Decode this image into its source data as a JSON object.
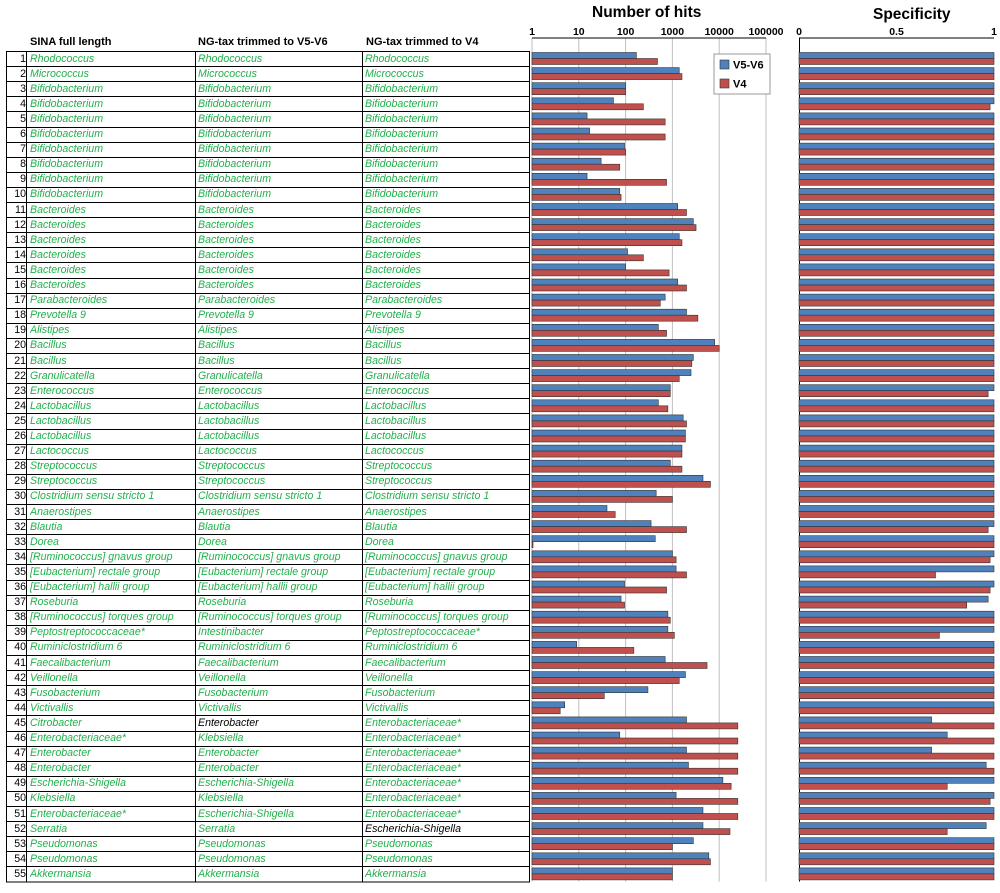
{
  "table": {
    "headers": [
      "SINA full length",
      "NG-tax trimmed to V5-V6",
      "NG-tax trimmed to V4"
    ],
    "rows": [
      {
        "n": "1",
        "a": "Rhodococcus",
        "b": "Rhodococcus",
        "c": "Rhodococcus"
      },
      {
        "n": "2",
        "a": "Micrococcus",
        "b": "Micrococcus",
        "c": "Micrococcus"
      },
      {
        "n": "3",
        "a": "Bifidobacterium",
        "b": "Bifidobacterium",
        "c": "Bifidobacterium"
      },
      {
        "n": "4",
        "a": "Bifidobacterium",
        "b": "Bifidobacterium",
        "c": "Bifidobacterium"
      },
      {
        "n": "5",
        "a": "Bifidobacterium",
        "b": "Bifidobacterium",
        "c": "Bifidobacterium"
      },
      {
        "n": "6",
        "a": "Bifidobacterium",
        "b": "Bifidobacterium",
        "c": "Bifidobacterium"
      },
      {
        "n": "7",
        "a": "Bifidobacterium",
        "b": "Bifidobacterium",
        "c": "Bifidobacterium"
      },
      {
        "n": "8",
        "a": "Bifidobacterium",
        "b": "Bifidobacterium",
        "c": "Bifidobacterium"
      },
      {
        "n": "9",
        "a": "Bifidobacterium",
        "b": "Bifidobacterium",
        "c": "Bifidobacterium"
      },
      {
        "n": "10",
        "a": "Bifidobacterium",
        "b": "Bifidobacterium",
        "c": "Bifidobacterium"
      },
      {
        "n": "11",
        "a": "Bacteroides",
        "b": "Bacteroides",
        "c": "Bacteroides"
      },
      {
        "n": "12",
        "a": "Bacteroides",
        "b": "Bacteroides",
        "c": "Bacteroides"
      },
      {
        "n": "13",
        "a": "Bacteroides",
        "b": "Bacteroides",
        "c": "Bacteroides"
      },
      {
        "n": "14",
        "a": "Bacteroides",
        "b": "Bacteroides",
        "c": "Bacteroides"
      },
      {
        "n": "15",
        "a": "Bacteroides",
        "b": "Bacteroides",
        "c": "Bacteroides"
      },
      {
        "n": "16",
        "a": "Bacteroides",
        "b": "Bacteroides",
        "c": "Bacteroides"
      },
      {
        "n": "17",
        "a": "Parabacteroides",
        "b": "Parabacteroides",
        "c": "Parabacteroides"
      },
      {
        "n": "18",
        "a": "Prevotella 9",
        "b": "Prevotella 9",
        "c": "Prevotella 9"
      },
      {
        "n": "19",
        "a": "Alistipes",
        "b": "Alistipes",
        "c": "Alistipes"
      },
      {
        "n": "20",
        "a": "Bacillus",
        "b": "Bacillus",
        "c": "Bacillus"
      },
      {
        "n": "21",
        "a": "Bacillus",
        "b": "Bacillus",
        "c": "Bacillus"
      },
      {
        "n": "22",
        "a": "Granulicatella",
        "b": "Granulicatella",
        "c": "Granulicatella"
      },
      {
        "n": "23",
        "a": "Enterococcus",
        "b": "Enterococcus",
        "c": "Enterococcus"
      },
      {
        "n": "24",
        "a": "Lactobacillus",
        "b": "Lactobacillus",
        "c": "Lactobacillus"
      },
      {
        "n": "25",
        "a": "Lactobacillus",
        "b": "Lactobacillus",
        "c": "Lactobacillus"
      },
      {
        "n": "26",
        "a": "Lactobacillus",
        "b": "Lactobacillus",
        "c": "Lactobacillus"
      },
      {
        "n": "27",
        "a": "Lactococcus",
        "b": "Lactococcus",
        "c": "Lactococcus"
      },
      {
        "n": "28",
        "a": "Streptococcus",
        "b": "Streptococcus",
        "c": "Streptococcus"
      },
      {
        "n": "29",
        "a": "Streptococcus",
        "b": "Streptococcus",
        "c": "Streptococcus"
      },
      {
        "n": "30",
        "a": "Clostridium sensu stricto 1",
        "b": "Clostridium sensu stricto 1",
        "c": "Clostridium sensu stricto 1"
      },
      {
        "n": "31",
        "a": "Anaerostipes",
        "b": "Anaerostipes",
        "c": "Anaerostipes"
      },
      {
        "n": "32",
        "a": "Blautia",
        "b": "Blautia",
        "c": "Blautia"
      },
      {
        "n": "33",
        "a": "Dorea",
        "b": "Dorea",
        "c": "Dorea"
      },
      {
        "n": "34",
        "a": "[Ruminococcus] gnavus group",
        "b": "[Ruminococcus] gnavus group",
        "c": "[Ruminococcus] gnavus group"
      },
      {
        "n": "35",
        "a": "[Eubacterium] rectale group",
        "b": "[Eubacterium] rectale group",
        "c": "[Eubacterium] rectale group"
      },
      {
        "n": "36",
        "a": "[Eubacterium] hallii group",
        "b": "[Eubacterium] hallii group",
        "c": "[Eubacterium] hallii group"
      },
      {
        "n": "37",
        "a": "Roseburia",
        "b": "Roseburia",
        "c": "Roseburia"
      },
      {
        "n": "38",
        "a": "[Ruminococcus] torques group",
        "b": "[Ruminococcus] torques group",
        "c": "[Ruminococcus] torques group"
      },
      {
        "n": "39",
        "a": "Peptostreptococcaceae*",
        "b": "Intestinibacter",
        "c": "Peptostreptococcaceae*"
      },
      {
        "n": "40",
        "a": "Ruminiclostridium 6",
        "b": "Ruminiclostridium 6",
        "c": "Ruminiclostridium 6"
      },
      {
        "n": "41",
        "a": "Faecalibacterium",
        "b": "Faecalibacterium",
        "c": "Faecalibacterium"
      },
      {
        "n": "42",
        "a": "Veillonella",
        "b": "Veillonella",
        "c": "Veillonella"
      },
      {
        "n": "43",
        "a": "Fusobacterium",
        "b": "Fusobacterium",
        "c": "Fusobacterium"
      },
      {
        "n": "44",
        "a": "Victivallis",
        "b": "Victivallis",
        "c": "Victivallis"
      },
      {
        "n": "45",
        "a": "Citrobacter",
        "b": "Enterobacter",
        "c": "Enterobacteriaceae*",
        "b_black": true
      },
      {
        "n": "46",
        "a": "Enterobacteriaceae*",
        "b": "Klebsiella",
        "c": "Enterobacteriaceae*"
      },
      {
        "n": "47",
        "a": "Enterobacter",
        "b": "Enterobacter",
        "c": "Enterobacteriaceae*"
      },
      {
        "n": "48",
        "a": "Enterobacter",
        "b": "Enterobacter",
        "c": "Enterobacteriaceae*"
      },
      {
        "n": "49",
        "a": "Escherichia-Shigella",
        "b": "Escherichia-Shigella",
        "c": "Enterobacteriaceae*"
      },
      {
        "n": "50",
        "a": "Klebsiella",
        "b": "Klebsiella",
        "c": "Enterobacteriaceae*"
      },
      {
        "n": "51",
        "a": "Enterobacteriaceae*",
        "b": "Escherichia-Shigella",
        "c": "Enterobacteriaceae*"
      },
      {
        "n": "52",
        "a": "Serratia",
        "b": "Serratia",
        "c": "Escherichia-Shigella",
        "c_black": true
      },
      {
        "n": "53",
        "a": "Pseudomonas",
        "b": "Pseudomonas",
        "c": "Pseudomonas"
      },
      {
        "n": "54",
        "a": "Pseudomonas",
        "b": "Pseudomonas",
        "c": "Pseudomonas"
      },
      {
        "n": "55",
        "a": "Akkermansia",
        "b": "Akkermansia",
        "c": "Akkermansia"
      }
    ]
  },
  "colors": {
    "series_v5v6": "#4f81bd",
    "series_v4": "#c0504d",
    "genus_text": "#21b04b"
  },
  "chart_data": [
    {
      "type": "bar",
      "orientation": "horizontal",
      "title": "Number of hits",
      "xscale": "log",
      "xlim": [
        1,
        100000
      ],
      "xticks": [
        "1",
        "10",
        "100",
        "1000",
        "10000",
        "100000"
      ],
      "grid": true,
      "legend_position": "top-right",
      "categories": [
        "1",
        "2",
        "3",
        "4",
        "5",
        "6",
        "7",
        "8",
        "9",
        "10",
        "11",
        "12",
        "13",
        "14",
        "15",
        "16",
        "17",
        "18",
        "19",
        "20",
        "21",
        "22",
        "23",
        "24",
        "25",
        "26",
        "27",
        "28",
        "29",
        "30",
        "31",
        "32",
        "33",
        "34",
        "35",
        "36",
        "37",
        "38",
        "39",
        "40",
        "41",
        "42",
        "43",
        "44",
        "45",
        "46",
        "47",
        "48",
        "49",
        "50",
        "51",
        "52",
        "53",
        "54",
        "55"
      ],
      "series": [
        {
          "name": "V5-V6",
          "color": "#4f81bd",
          "values": [
            170,
            1400,
            100,
            55,
            15,
            17,
            95,
            30,
            15,
            75,
            1300,
            2800,
            1400,
            110,
            100,
            1300,
            700,
            2000,
            500,
            8000,
            2800,
            2500,
            900,
            500,
            1700,
            1900,
            1600,
            900,
            4500,
            450,
            40,
            350,
            430,
            1000,
            1200,
            95,
            80,
            800,
            800,
            9,
            700,
            1900,
            300,
            5,
            2000,
            75,
            2000,
            2200,
            12000,
            1200,
            4500,
            4500,
            2800,
            6000,
            1000
          ]
        },
        {
          "name": "V4",
          "color": "#c0504d",
          "values": [
            480,
            1600,
            100,
            240,
            700,
            700,
            100,
            75,
            750,
            80,
            2000,
            3200,
            1600,
            240,
            850,
            2000,
            550,
            3500,
            750,
            10000,
            2600,
            1400,
            900,
            800,
            2000,
            1900,
            1600,
            1600,
            6500,
            1000,
            60,
            2000,
            1,
            1200,
            2000,
            750,
            95,
            900,
            1100,
            150,
            5500,
            1400,
            35,
            4,
            25000,
            25000,
            25000,
            25000,
            18000,
            25000,
            25000,
            17000,
            1000,
            6500,
            1000
          ]
        }
      ]
    },
    {
      "type": "bar",
      "orientation": "horizontal",
      "title": "Specificity",
      "xlim": [
        0,
        1
      ],
      "xticks": [
        "0",
        "0.5",
        "1"
      ],
      "grid": false,
      "categories": [
        "1",
        "2",
        "3",
        "4",
        "5",
        "6",
        "7",
        "8",
        "9",
        "10",
        "11",
        "12",
        "13",
        "14",
        "15",
        "16",
        "17",
        "18",
        "19",
        "20",
        "21",
        "22",
        "23",
        "24",
        "25",
        "26",
        "27",
        "28",
        "29",
        "30",
        "31",
        "32",
        "33",
        "34",
        "35",
        "36",
        "37",
        "38",
        "39",
        "40",
        "41",
        "42",
        "43",
        "44",
        "45",
        "46",
        "47",
        "48",
        "49",
        "50",
        "51",
        "52",
        "53",
        "54",
        "55"
      ],
      "series": [
        {
          "name": "V5-V6",
          "color": "#4f81bd",
          "values": [
            1,
            1,
            1,
            1,
            1,
            1,
            1,
            1,
            1,
            1,
            1,
            1,
            1,
            1,
            1,
            1,
            1,
            1,
            1,
            1,
            1,
            1,
            1,
            1,
            1,
            1,
            1,
            1,
            1,
            1,
            1,
            1,
            1,
            1,
            1,
            1,
            0.97,
            1,
            1,
            1,
            1,
            1,
            1,
            1,
            0.68,
            0.76,
            0.68,
            0.96,
            1,
            1,
            1,
            0.96,
            1,
            1,
            1
          ]
        },
        {
          "name": "V4",
          "color": "#c0504d",
          "values": [
            1,
            1,
            1,
            0.98,
            1,
            1,
            1,
            1,
            1,
            1,
            1,
            1,
            1,
            1,
            1,
            1,
            1,
            1,
            1,
            1,
            1,
            1,
            0.97,
            1,
            1,
            1,
            1,
            1,
            1,
            1,
            1,
            0.97,
            1,
            0.98,
            0.7,
            0.98,
            0.86,
            1,
            0.72,
            1,
            1,
            1,
            1,
            1,
            1,
            1,
            1,
            1,
            0.76,
            0.98,
            1,
            0.76,
            1,
            1,
            1
          ]
        }
      ]
    }
  ]
}
